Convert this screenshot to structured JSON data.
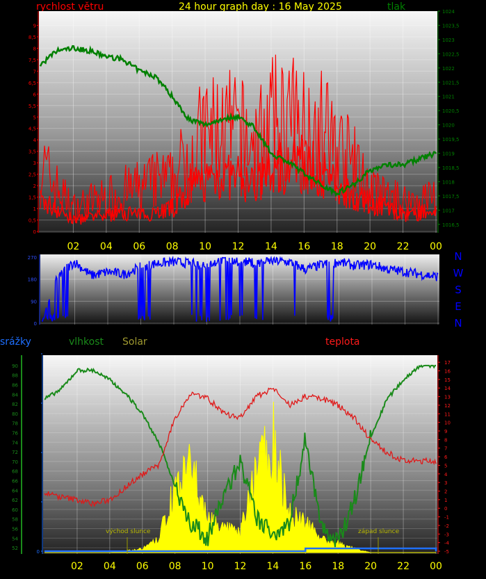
{
  "title": "24 hour graph day : 16 May 2025",
  "labels": {
    "wind": "rychlost větru",
    "pressure": "tlak",
    "rain": "srážky",
    "humidity": "vlhkost",
    "solar": "Solar",
    "temperature": "teplota",
    "sunrise": "východ slunce",
    "sunset": "západ slunce"
  },
  "compass": [
    "N",
    "W",
    "S",
    "E",
    "N"
  ],
  "colors": {
    "wind": "#ff0000",
    "pressure": "#008000",
    "direction": "#0000ff",
    "rain": "#1e6fff",
    "humidity": "#1a8a1a",
    "solar": "#ffff00",
    "temperature": "#ff1a1a",
    "axis_hours": "#ffff00"
  },
  "chart_data": [
    {
      "type": "line",
      "name": "wind-pressure",
      "xlabels": [
        "02",
        "04",
        "06",
        "08",
        "10",
        "12",
        "14",
        "16",
        "18",
        "20",
        "22",
        "00"
      ],
      "ylim_left": [
        0,
        9.5
      ],
      "yticks_left": [
        "0",
        "0,5",
        "1",
        "1,5",
        "2",
        "2,5",
        "3",
        "3,5",
        "4",
        "4,5",
        "5",
        "5,5",
        "6",
        "6,5",
        "7",
        "7,5",
        "8",
        "8,5",
        "9"
      ],
      "ylim_right": [
        1016.25,
        1024
      ],
      "yticks_right": [
        "1016,5",
        "1017",
        "1017,5",
        "1018",
        "1018,5",
        "1019",
        "1019,5",
        "1020",
        "1020,5",
        "1021",
        "1021,5",
        "1022",
        "1022,5",
        "1023",
        "1023,5",
        "1024"
      ],
      "hours": [
        0,
        1,
        2,
        3,
        4,
        5,
        6,
        7,
        8,
        9,
        10,
        11,
        12,
        13,
        14,
        15,
        16,
        17,
        18,
        19,
        20,
        21,
        22,
        23,
        24
      ],
      "wind_avg": [
        1.3,
        1.0,
        0.5,
        0.6,
        0.7,
        0.9,
        0.7,
        0.9,
        1.0,
        1.8,
        2.3,
        2.4,
        2.3,
        2.0,
        2.6,
        3.0,
        3.0,
        2.6,
        1.9,
        1.6,
        1.2,
        1.1,
        0.7,
        0.8,
        0.9
      ],
      "wind_gust": [
        4.0,
        2.6,
        1.4,
        1.8,
        2.0,
        2.4,
        2.6,
        3.0,
        3.0,
        4.6,
        5.8,
        6.0,
        5.8,
        5.0,
        6.4,
        6.6,
        6.2,
        6.2,
        5.0,
        4.0,
        2.4,
        2.0,
        1.8,
        1.8,
        2.2
      ],
      "pressure": [
        1022.1,
        1022.6,
        1022.7,
        1022.6,
        1022.4,
        1022.3,
        1021.9,
        1021.7,
        1021.0,
        1020.2,
        1020.0,
        1020.2,
        1020.3,
        1019.9,
        1019.0,
        1018.7,
        1018.3,
        1017.9,
        1017.6,
        1017.9,
        1018.4,
        1018.6,
        1018.6,
        1018.8,
        1019.0
      ]
    },
    {
      "type": "line",
      "name": "wind-direction",
      "ylim": [
        0,
        270
      ],
      "yticks": [
        "0",
        "90",
        "180",
        "270"
      ],
      "direction": [
        10,
        200,
        250,
        195,
        210,
        200,
        230,
        245,
        250,
        245,
        240,
        260,
        255,
        245,
        255,
        250,
        220,
        240,
        250,
        235,
        240,
        220,
        210,
        200,
        190
      ]
    },
    {
      "type": "area",
      "name": "rain-humidity-solar-temperature",
      "xlabels": [
        "02",
        "04",
        "06",
        "08",
        "10",
        "12",
        "14",
        "16",
        "18",
        "20",
        "22",
        "00"
      ],
      "ylim_humidity": [
        51,
        91
      ],
      "yticks_humidity": [
        "52",
        "54",
        "56",
        "58",
        "60",
        "62",
        "64",
        "66",
        "68",
        "70",
        "72",
        "74",
        "76",
        "78",
        "80",
        "82",
        "84",
        "86",
        "88",
        "90"
      ],
      "ylim_temperature": [
        -5,
        17.5
      ],
      "yticks_temperature": [
        "-5",
        "-4",
        "-3",
        "-2",
        "-1",
        "0",
        "1",
        "2",
        "3",
        "4",
        "5",
        "6",
        "7",
        "8",
        "9",
        "10",
        "11",
        "12",
        "13",
        "14",
        "15",
        "16",
        "17"
      ],
      "rain_ticks": [
        "0",
        "",
        "",
        "",
        ""
      ],
      "humidity": [
        83,
        85,
        89,
        89,
        87,
        84,
        80,
        74,
        65,
        57,
        54,
        63,
        70,
        58,
        55,
        57,
        75,
        56,
        53,
        62,
        75,
        83,
        87,
        90,
        90
      ],
      "temperature": [
        1.8,
        1.3,
        1.0,
        0.5,
        1.0,
        2.5,
        4.0,
        5.0,
        10.5,
        13.5,
        12.8,
        11.0,
        10.5,
        13.0,
        14.0,
        12.0,
        13.0,
        12.8,
        12.0,
        10.5,
        8.0,
        6.5,
        5.5,
        5.5,
        5.5
      ],
      "solar_pct": [
        0,
        0,
        0,
        0,
        0,
        1,
        2,
        7,
        35,
        45,
        20,
        13,
        10,
        45,
        62,
        20,
        18,
        7,
        5,
        2,
        0,
        0,
        0,
        0,
        0
      ],
      "rain": [
        0,
        0,
        0,
        0,
        0,
        0,
        0,
        0,
        0,
        0,
        0,
        0,
        0,
        0,
        0,
        0,
        1,
        1,
        1,
        1,
        1,
        1,
        1,
        1,
        0
      ]
    }
  ]
}
